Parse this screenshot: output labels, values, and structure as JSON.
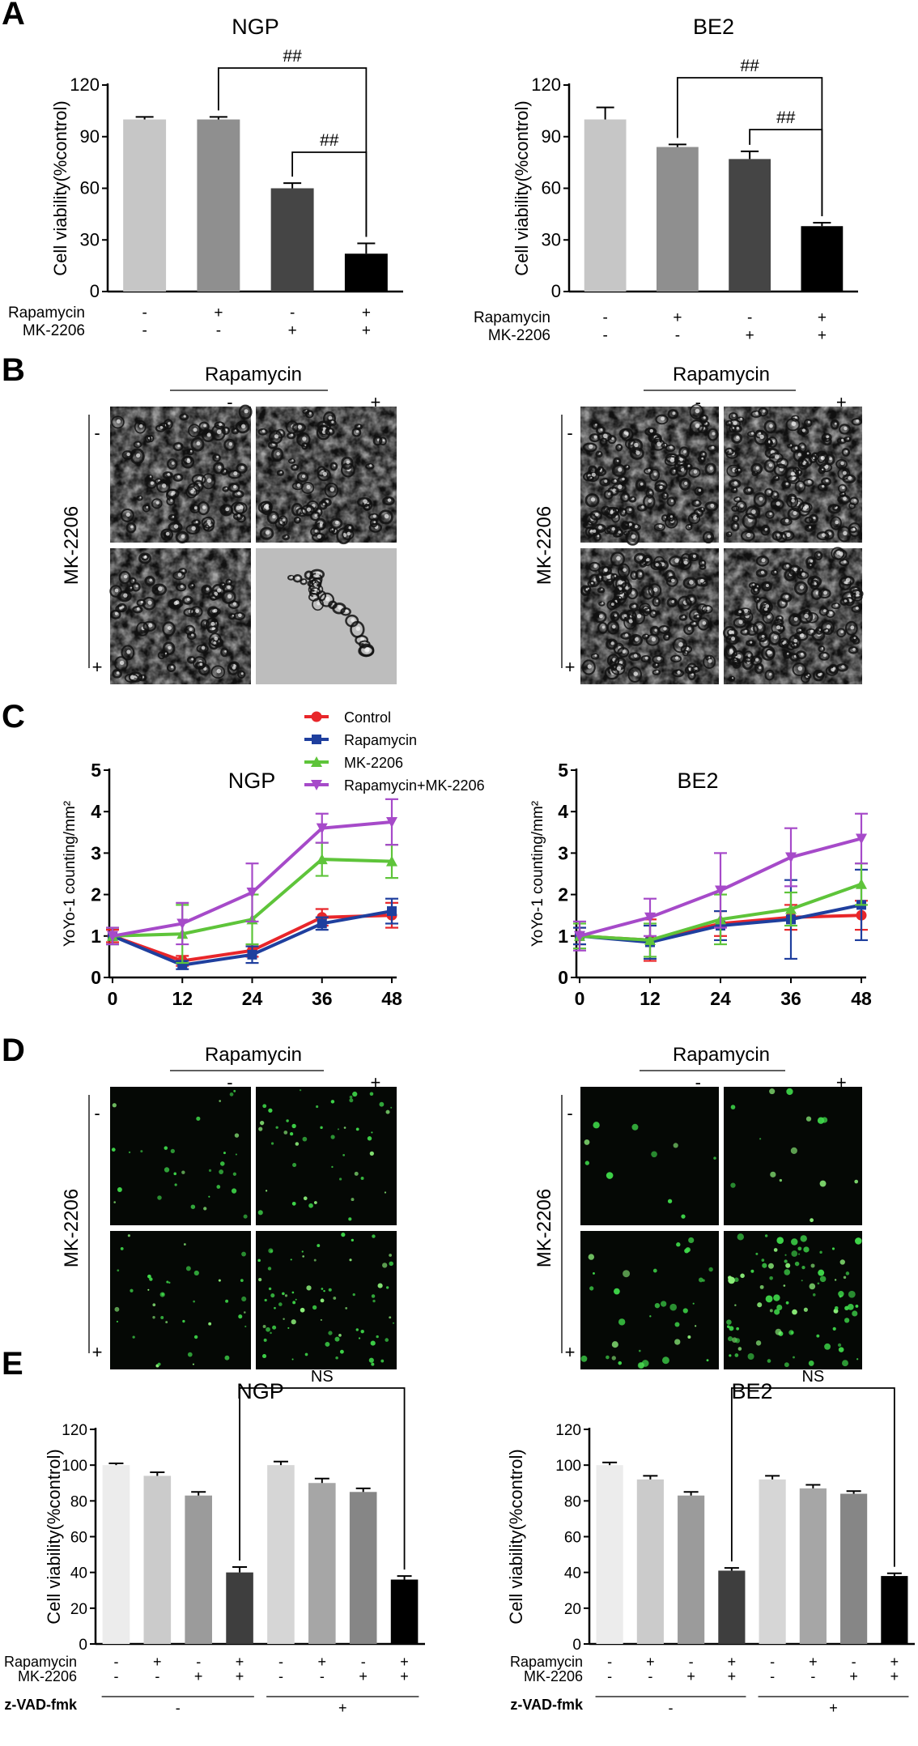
{
  "panel_letters": [
    "A",
    "B",
    "C",
    "D",
    "E"
  ],
  "labels": {
    "rapamycin": "Rapamycin",
    "mk2206": "MK-2206",
    "zvad": "z-VAD-fmk",
    "minus": "-",
    "plus": "+",
    "sig_hash": "##",
    "sig_ns": "NS"
  },
  "colors": {
    "control": "#e8262a",
    "rapamycin": "#1f3f9e",
    "mk2206": "#5ec43a",
    "combo": "#a64ac9"
  },
  "micrographs": {
    "brightfield": [
      "NGP - / -",
      "NGP + / -",
      "NGP - / +",
      "NGP + / +",
      "BE2 - / -",
      "BE2 + / -",
      "BE2 - / +",
      "BE2 + / +"
    ],
    "fluorescence": [
      "NGP - / -",
      "NGP + / -",
      "NGP - / +",
      "NGP + / +",
      "BE2 - / -",
      "BE2 + / -",
      "BE2 - / +",
      "BE2 + / +"
    ]
  },
  "chart_data": [
    {
      "panel": "A",
      "type": "bar",
      "title": "NGP",
      "ylabel": "Cell viability(%control)",
      "ylim": [
        0,
        120
      ],
      "yticks": [
        0,
        30,
        60,
        90,
        120
      ],
      "values": [
        100,
        100,
        60,
        22
      ],
      "errors": [
        1.5,
        1.5,
        3,
        6
      ],
      "fills": [
        "#c6c6c6",
        "#8f8f8f",
        "#454545",
        "#000000"
      ],
      "conditions": [
        {
          "name": "Rapamycin",
          "signs": [
            "-",
            "+",
            "-",
            "+"
          ]
        },
        {
          "name": "MK-2206",
          "signs": [
            "-",
            "-",
            "+",
            "+"
          ]
        }
      ],
      "comparisons": [
        {
          "from": 1,
          "to": 3,
          "label": "##"
        },
        {
          "from": 2,
          "to": 3,
          "label": "##"
        }
      ]
    },
    {
      "panel": "A",
      "type": "bar",
      "title": "BE2",
      "ylabel": "Cell viability(%control)",
      "ylim": [
        0,
        120
      ],
      "yticks": [
        0,
        30,
        60,
        90,
        120
      ],
      "values": [
        100,
        84,
        77,
        38
      ],
      "errors": [
        7,
        1.5,
        4.5,
        2
      ],
      "fills": [
        "#c6c6c6",
        "#8f8f8f",
        "#454545",
        "#000000"
      ],
      "conditions": [
        {
          "name": "Rapamycin",
          "signs": [
            "-",
            "+",
            "-",
            "+"
          ]
        },
        {
          "name": "MK-2206",
          "signs": [
            "-",
            "-",
            "+",
            "+"
          ]
        }
      ],
      "comparisons": [
        {
          "from": 1,
          "to": 3,
          "label": "##"
        },
        {
          "from": 2,
          "to": 3,
          "label": "##"
        }
      ]
    },
    {
      "panel": "C",
      "type": "line",
      "title": "NGP",
      "ylabel": "YoYo-1 counting/mm²",
      "ylim": [
        0,
        5
      ],
      "yticks": [
        0,
        1,
        2,
        3,
        4,
        5
      ],
      "x": [
        0,
        12,
        24,
        36,
        48
      ],
      "series": [
        {
          "name": "Control",
          "values": [
            1.0,
            0.4,
            0.65,
            1.45,
            1.5
          ],
          "errors": [
            0.15,
            0.12,
            0.15,
            0.2,
            0.3
          ]
        },
        {
          "name": "Rapamycin",
          "values": [
            1.0,
            0.3,
            0.55,
            1.3,
            1.6
          ],
          "errors": [
            0.2,
            0.1,
            0.2,
            0.15,
            0.3
          ]
        },
        {
          "name": "MK-2206",
          "values": [
            1.0,
            1.05,
            1.4,
            2.85,
            2.8
          ],
          "errors": [
            0.2,
            0.7,
            0.6,
            0.4,
            0.4
          ]
        },
        {
          "name": "Rapamycin+MK-2206",
          "values": [
            1.0,
            1.3,
            2.05,
            3.6,
            3.75
          ],
          "errors": [
            0.2,
            0.5,
            0.7,
            0.35,
            0.55
          ]
        }
      ]
    },
    {
      "panel": "C",
      "type": "line",
      "title": "BE2",
      "ylabel": "YoYo-1 counting/mm²",
      "ylim": [
        0,
        5
      ],
      "yticks": [
        0,
        1,
        2,
        3,
        4,
        5
      ],
      "x": [
        0,
        12,
        24,
        36,
        48
      ],
      "series": [
        {
          "name": "Control",
          "values": [
            1.0,
            0.9,
            1.3,
            1.45,
            1.5
          ],
          "errors": [
            0.2,
            0.5,
            0.3,
            0.3,
            0.35
          ]
        },
        {
          "name": "Rapamycin",
          "values": [
            1.0,
            0.85,
            1.25,
            1.4,
            1.75
          ],
          "errors": [
            0.2,
            0.4,
            0.35,
            0.95,
            0.85
          ]
        },
        {
          "name": "MK-2206",
          "values": [
            1.0,
            0.9,
            1.4,
            1.65,
            2.25
          ],
          "errors": [
            0.3,
            0.4,
            0.6,
            0.4,
            0.5
          ]
        },
        {
          "name": "Rapamycin+MK-2206",
          "values": [
            1.0,
            1.45,
            2.1,
            2.9,
            3.35
          ],
          "errors": [
            0.35,
            0.45,
            0.9,
            0.7,
            0.6
          ]
        }
      ]
    },
    {
      "panel": "E",
      "type": "bar",
      "title": "NGP",
      "ylabel": "Cell viability(%control)",
      "ylim": [
        0,
        120
      ],
      "yticks": [
        0,
        20,
        40,
        60,
        80,
        100,
        120
      ],
      "values": [
        100,
        94,
        83,
        40,
        100,
        90,
        85,
        36
      ],
      "errors": [
        1,
        2,
        2,
        3,
        2,
        2.5,
        2,
        2
      ],
      "fills": [
        "#ececec",
        "#cbcbcb",
        "#9b9b9b",
        "#3e3e3e",
        "#d6d6d6",
        "#a6a6a6",
        "#868686",
        "#000000"
      ],
      "conditions": [
        {
          "name": "Rapamycin",
          "signs": [
            "-",
            "+",
            "-",
            "+",
            "-",
            "+",
            "-",
            "+"
          ]
        },
        {
          "name": "MK-2206",
          "signs": [
            "-",
            "-",
            "+",
            "+",
            "-",
            "-",
            "+",
            "+"
          ]
        }
      ],
      "group_condition": {
        "name": "z-VAD-fmk",
        "signs": [
          "-",
          "+"
        ]
      },
      "comparisons": [
        {
          "from": 3,
          "to": 7,
          "label": "NS"
        }
      ]
    },
    {
      "panel": "E",
      "type": "bar",
      "title": "BE2",
      "ylabel": "Cell viability(%control)",
      "ylim": [
        0,
        120
      ],
      "yticks": [
        0,
        20,
        40,
        60,
        80,
        100,
        120
      ],
      "values": [
        100,
        92,
        83,
        41,
        92,
        87,
        84,
        38
      ],
      "errors": [
        1.5,
        2,
        2,
        1.5,
        2,
        2,
        1.5,
        1.5
      ],
      "fills": [
        "#ececec",
        "#cbcbcb",
        "#9b9b9b",
        "#3e3e3e",
        "#d6d6d6",
        "#a6a6a6",
        "#868686",
        "#000000"
      ],
      "conditions": [
        {
          "name": "Rapamycin",
          "signs": [
            "-",
            "+",
            "-",
            "+",
            "-",
            "+",
            "-",
            "+"
          ]
        },
        {
          "name": "MK-2206",
          "signs": [
            "-",
            "-",
            "+",
            "+",
            "-",
            "-",
            "+",
            "+"
          ]
        }
      ],
      "group_condition": {
        "name": "z-VAD-fmk",
        "signs": [
          "-",
          "+"
        ]
      },
      "comparisons": [
        {
          "from": 3,
          "to": 7,
          "label": "NS"
        }
      ]
    }
  ]
}
